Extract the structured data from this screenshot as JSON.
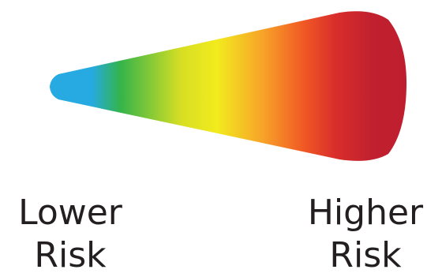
{
  "scale": {
    "gradient_colors": [
      "#26aae1",
      "#26aae1",
      "#34b44a",
      "#d7df23",
      "#f2eb1e",
      "#f7a229",
      "#f15a24",
      "#d92e2b",
      "#c1212f",
      "#be1e2d"
    ],
    "direction": "left-to-right"
  },
  "labels": {
    "lower": {
      "line1": "Lower",
      "line2": "Risk"
    },
    "higher": {
      "line1": "Higher",
      "line2": "Risk"
    }
  }
}
